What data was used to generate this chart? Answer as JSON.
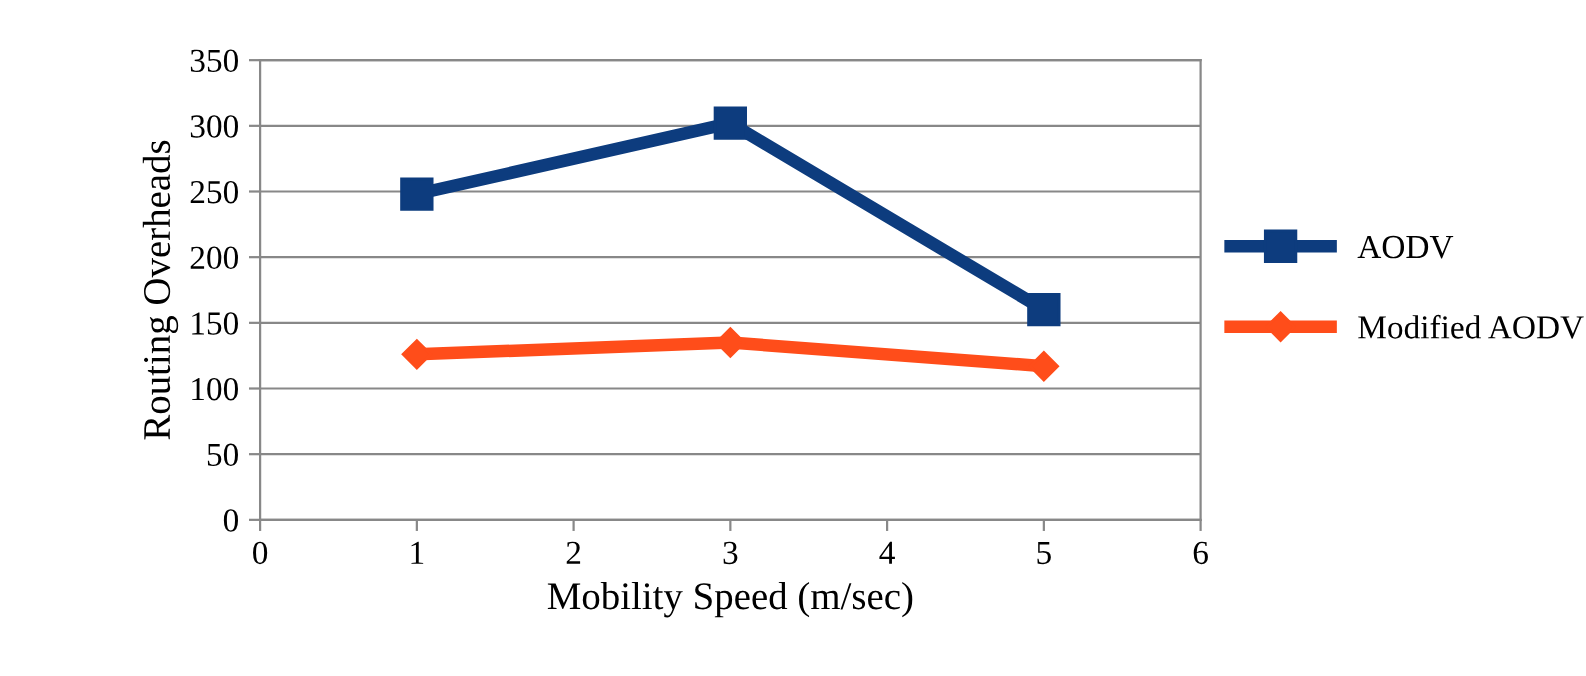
{
  "chart_data": {
    "type": "line",
    "xlabel": "Mobility Speed (m/sec)",
    "ylabel": "Routing Overheads",
    "x": [
      1,
      3,
      5
    ],
    "series": [
      {
        "name": "AODV",
        "color": "#0d3c7e",
        "values": [
          248,
          302,
          160
        ],
        "marker": "square"
      },
      {
        "name": "Modified AODV",
        "color": "#ff4d1a",
        "values": [
          126,
          135,
          117
        ],
        "marker": "diamond"
      }
    ],
    "xlim": [
      0,
      6
    ],
    "xticks": [
      0,
      1,
      2,
      3,
      4,
      5,
      6
    ],
    "ylim": [
      0,
      350
    ],
    "yticks": [
      0,
      50,
      100,
      150,
      200,
      250,
      300,
      350
    ],
    "grid": "y",
    "legend": "right",
    "line_style": "solid"
  }
}
